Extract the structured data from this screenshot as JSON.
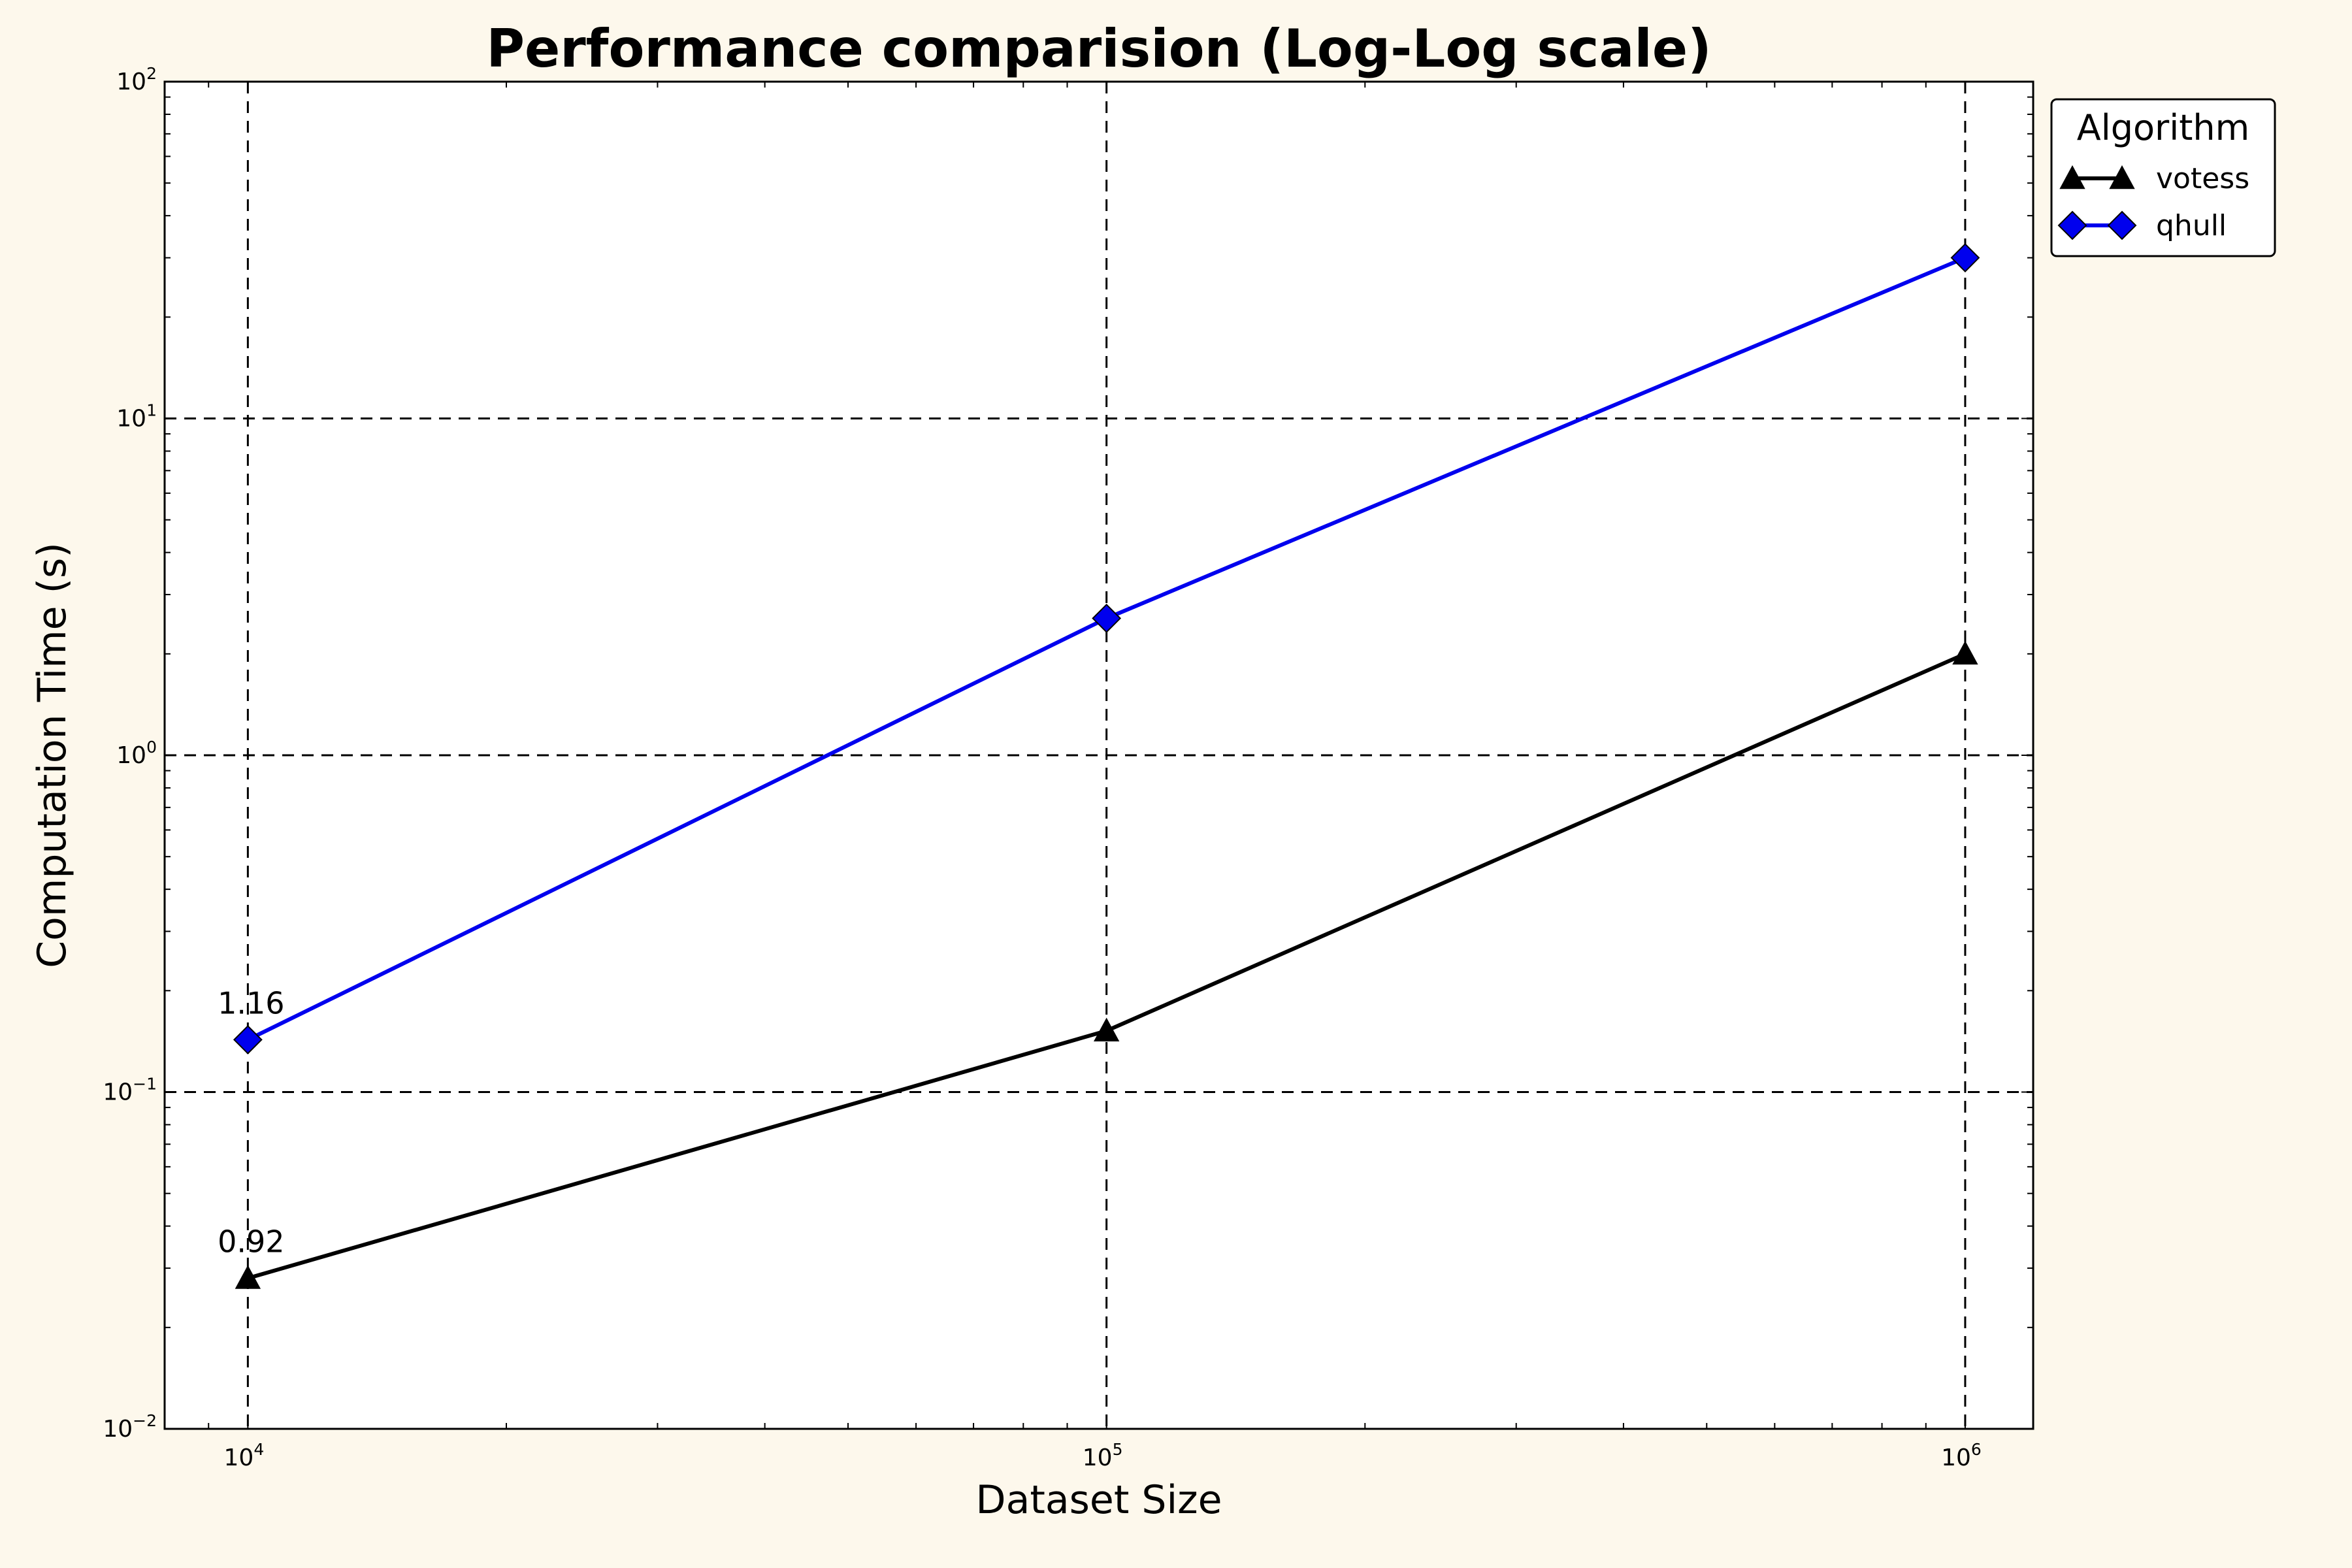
{
  "chart_data": {
    "type": "line",
    "title": "Performance comparision (Log-Log scale)",
    "xlabel": "Dataset Size",
    "ylabel": "Computation Time (s)",
    "xscale": "log",
    "yscale": "log",
    "xlim": [
      8000,
      1200000
    ],
    "ylim": [
      0.01,
      100
    ],
    "x": [
      10000,
      100000,
      1000000
    ],
    "grid": true,
    "x_ticks": [
      {
        "value": 10000,
        "base": "10",
        "exp": "4"
      },
      {
        "value": 100000,
        "base": "10",
        "exp": "5"
      },
      {
        "value": 1000000,
        "base": "10",
        "exp": "6"
      }
    ],
    "y_ticks": [
      {
        "value": 0.01,
        "base": "10",
        "exp": "−2"
      },
      {
        "value": 0.1,
        "base": "10",
        "exp": "−1"
      },
      {
        "value": 1,
        "base": "10",
        "exp": "0"
      },
      {
        "value": 10,
        "base": "10",
        "exp": "1"
      },
      {
        "value": 100,
        "base": "10",
        "exp": "2"
      }
    ],
    "series": [
      {
        "name": "votess",
        "values": [
          0.028,
          0.152,
          2.0
        ],
        "color": "#000000",
        "marker": "triangle"
      },
      {
        "name": "qhull",
        "values": [
          0.143,
          2.55,
          30.0
        ],
        "color": "#0000ee",
        "marker": "diamond"
      }
    ],
    "annotations": [
      {
        "text": "1.16",
        "x": 10000,
        "y": 0.143,
        "series": "qhull"
      },
      {
        "text": "0.92",
        "x": 10000,
        "y": 0.028,
        "series": "votess"
      }
    ],
    "legend": {
      "title": "Algorithm",
      "placement": "outside-top-right"
    }
  }
}
